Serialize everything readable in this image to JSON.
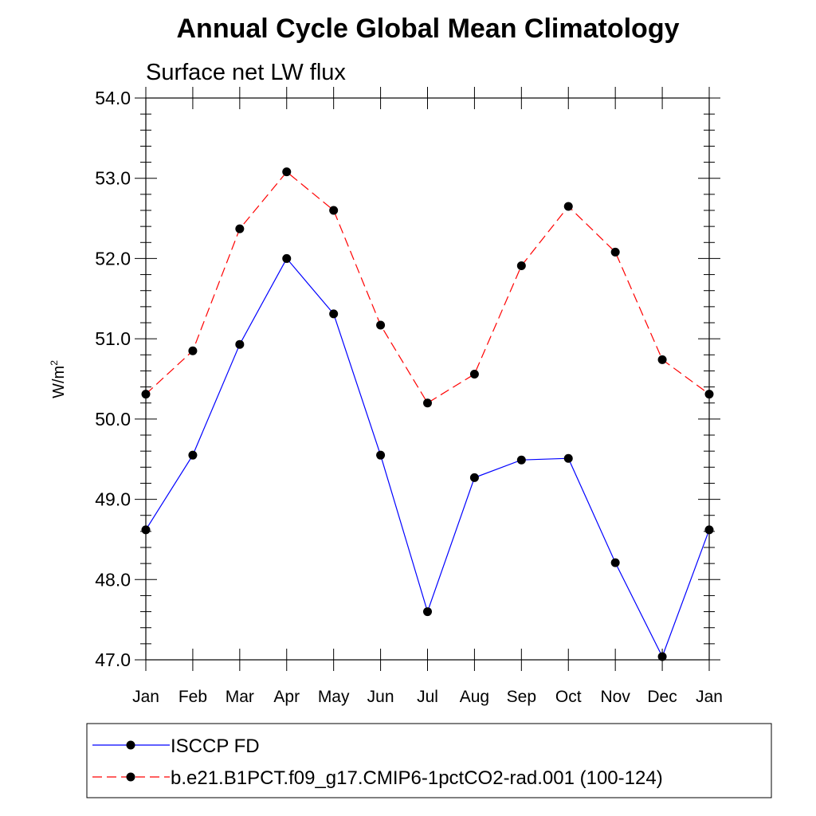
{
  "chart_data": {
    "type": "line",
    "title": "Annual Cycle Global Mean Climatology",
    "subtitle": "Surface net LW flux",
    "ylabel": "W/m",
    "ylabel_superscript": "2",
    "categories": [
      "Jan",
      "Feb",
      "Mar",
      "Apr",
      "May",
      "Jun",
      "Jul",
      "Aug",
      "Sep",
      "Oct",
      "Nov",
      "Dec",
      "Jan"
    ],
    "ylim": [
      47.0,
      54.0
    ],
    "yticks": [
      "47.0",
      "48.0",
      "49.0",
      "50.0",
      "51.0",
      "52.0",
      "53.0",
      "54.0"
    ],
    "series": [
      {
        "name": "ISCCP FD",
        "color": "#0000ff",
        "dash": "solid",
        "values": [
          48.62,
          49.55,
          50.93,
          52.0,
          51.31,
          49.55,
          47.6,
          49.27,
          49.49,
          49.51,
          48.21,
          47.04,
          48.62
        ]
      },
      {
        "name": "b.e21.B1PCT.f09_g17.CMIP6-1pctCO2-rad.001 (100-124)",
        "color": "#ff0000",
        "dash": "dashed",
        "values": [
          50.31,
          50.85,
          52.37,
          53.08,
          52.6,
          51.17,
          50.2,
          50.56,
          51.91,
          52.65,
          52.08,
          50.74,
          50.31
        ]
      }
    ],
    "legend": "bottom",
    "grid": false
  }
}
